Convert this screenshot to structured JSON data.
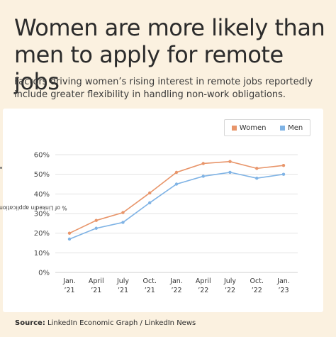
{
  "headline": {
    "line1": "Women are more likely than",
    "line2": "men to apply for remote jobs"
  },
  "subtitle": {
    "line1": "Factors driving women’s rising interest in remote jobs reportedly",
    "line2": "include greater flexibility in handling non-work obligations."
  },
  "source": {
    "label": "Source:",
    "text": "LinkedIn Economic Graph / LinkedIn News"
  },
  "chart_data": {
    "type": "line",
    "ylabel": "% of LinkedIn applications to remote jobs",
    "xlabel": "",
    "ylim": [
      0,
      60
    ],
    "yticks": [
      "0%",
      "10%",
      "20%",
      "30%",
      "40%",
      "50%",
      "60%"
    ],
    "ytick_values": [
      0,
      10,
      20,
      30,
      40,
      50,
      60
    ],
    "categories": [
      [
        "Jan.",
        "’21"
      ],
      [
        "April",
        "’21"
      ],
      [
        "July",
        "’21"
      ],
      [
        "Oct.",
        "’21"
      ],
      [
        "Jan.",
        "’22"
      ],
      [
        "April",
        "’22"
      ],
      [
        "July",
        "’22"
      ],
      [
        "Oct.",
        "’22"
      ],
      [
        "Jan.",
        "’23"
      ]
    ],
    "grid": true,
    "legend_position": "top-right",
    "series": [
      {
        "name": "Women",
        "color": "#e8956a",
        "values": [
          20,
          26.5,
          30.5,
          40.5,
          51,
          55.5,
          56.5,
          53,
          54.5
        ]
      },
      {
        "name": "Men",
        "color": "#7fb3e5",
        "values": [
          17,
          22.5,
          25.5,
          35.5,
          45,
          49,
          51,
          48,
          50
        ]
      }
    ]
  }
}
